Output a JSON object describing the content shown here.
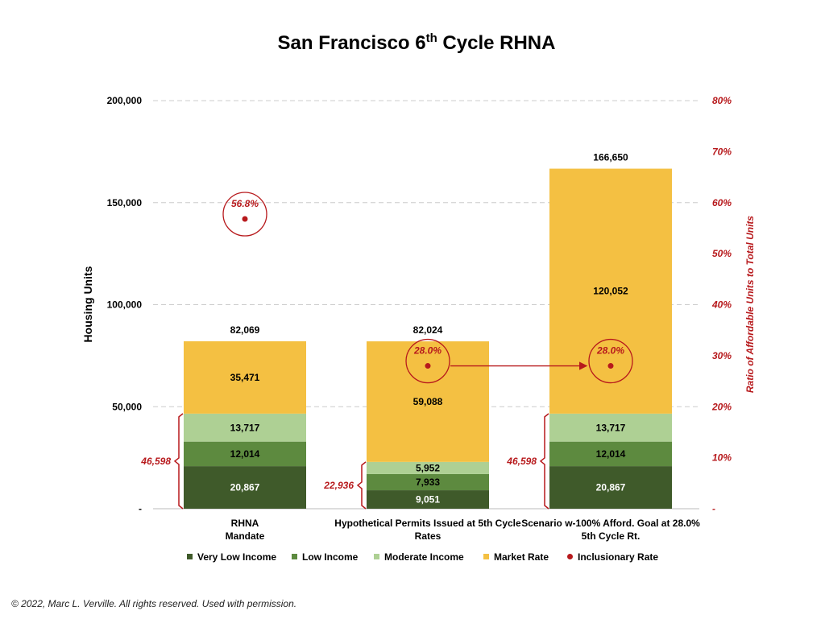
{
  "chart_data": {
    "type": "bar",
    "stacked": true,
    "title": "San Francisco 6",
    "title_superscript": "th",
    "title_rest": " Cycle RHNA",
    "ylabel": "Housing Units",
    "y2label": "Ratio of Affordable Units to Total Units",
    "ylim": [
      0,
      200000
    ],
    "y2lim": [
      0,
      0.8
    ],
    "y_ticks": [
      "-",
      "50,000",
      "100,000",
      "150,000",
      "200,000"
    ],
    "y_tick_values": [
      0,
      50000,
      100000,
      150000,
      200000
    ],
    "y2_ticks": [
      "-",
      "10%",
      "20%",
      "30%",
      "40%",
      "50%",
      "60%",
      "70%",
      "80%"
    ],
    "y2_tick_values": [
      0,
      0.1,
      0.2,
      0.3,
      0.4,
      0.5,
      0.6,
      0.7,
      0.8
    ],
    "grid": true,
    "legend_position": "bottom",
    "categories": [
      [
        "RHNA",
        "Mandate"
      ],
      [
        "Hypothetical Permits Issued at 5th Cycle",
        "Rates"
      ],
      [
        "Scenario  w-100% Afford. Goal at 28.0%",
        "5th Cycle Rt."
      ]
    ],
    "series": [
      {
        "name": "Very Low Income",
        "color": "#3f5a2a",
        "label_color": "#ffffff",
        "values": [
          20867,
          9051,
          20867
        ],
        "labels": [
          "20,867",
          "9,051",
          "20,867"
        ]
      },
      {
        "name": "Low Income",
        "color": "#5d8a3f",
        "label_color": "#000000",
        "values": [
          12014,
          7933,
          12014
        ],
        "labels": [
          "12,014",
          "7,933",
          "12,014"
        ]
      },
      {
        "name": "Moderate Income",
        "color": "#aed094",
        "label_color": "#000000",
        "values": [
          13717,
          5952,
          13717
        ],
        "labels": [
          "13,717",
          "5,952",
          "13,717"
        ]
      },
      {
        "name": "Market Rate",
        "color": "#f4c042",
        "label_color": "#000000",
        "values": [
          35471,
          59088,
          120052
        ],
        "labels": [
          "35,471",
          "59,088",
          "120,052"
        ]
      }
    ],
    "totals": [
      "82,069",
      "82,024",
      "166,650"
    ],
    "total_values": [
      82069,
      82024,
      166650
    ],
    "inclusionary_rate": {
      "name": "Inclusionary Rate",
      "color": "#b7191c",
      "values": [
        0.568,
        0.28,
        0.28
      ],
      "labels": [
        "56.8%",
        "28.0%",
        "28.0%"
      ]
    },
    "affordable_totals": {
      "values": [
        46598,
        22936,
        46598
      ],
      "labels": [
        "46,598",
        "22,936",
        "46,598"
      ]
    },
    "arrow": {
      "from_category": 1,
      "to_category": 2
    }
  },
  "footer": "© 2022, Marc L. Verville.  All rights reserved.  Used with permission."
}
